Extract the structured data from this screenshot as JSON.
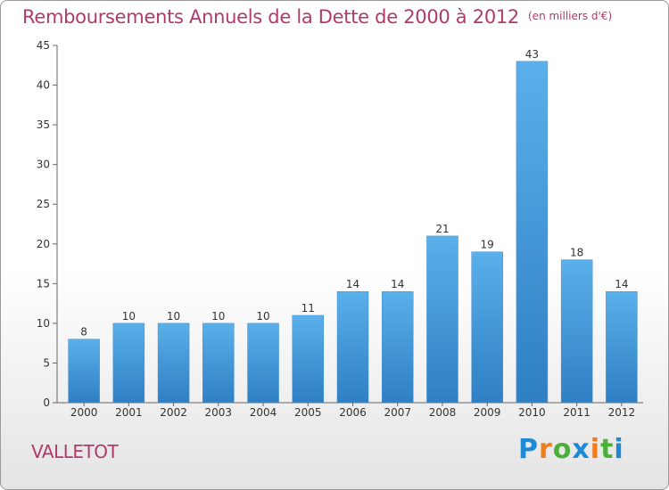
{
  "chart_data": {
    "type": "bar",
    "title": "Remboursements Annuels de la Dette de 2000 à 2012",
    "unit_note": "(en milliers d'€)",
    "categories": [
      "2000",
      "2001",
      "2002",
      "2003",
      "2004",
      "2005",
      "2006",
      "2007",
      "2008",
      "2009",
      "2010",
      "2011",
      "2012"
    ],
    "values": [
      8,
      10,
      10,
      10,
      10,
      11,
      14,
      14,
      21,
      19,
      43,
      18,
      14
    ],
    "ylim": [
      0,
      45
    ],
    "yticks": [
      0,
      5,
      10,
      15,
      20,
      25,
      30,
      35,
      40,
      45
    ],
    "grid": false,
    "legend": "none",
    "bar_color_top": "#5ab0ea",
    "bar_color_bottom": "#2f7fc4",
    "title_color": "#b03a6c"
  },
  "footer": {
    "commune": "VALLETOT",
    "logo_text": "Proxiti",
    "logo_colors": [
      "#1e8ad6",
      "#f07c1c",
      "#4caf3a",
      "#1e8ad6",
      "#f07c1c",
      "#4caf3a",
      "#1e8ad6"
    ]
  }
}
